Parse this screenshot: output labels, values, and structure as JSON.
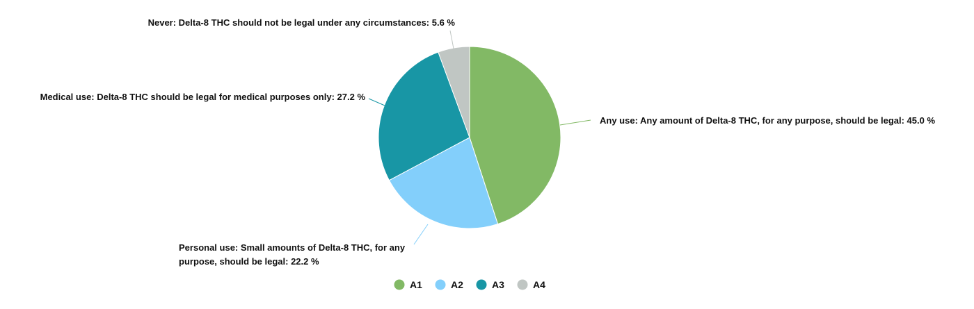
{
  "chart_data": {
    "type": "pie",
    "title": "",
    "slices": [
      {
        "key": "A1",
        "label_lines": [
          "Any use: Any amount of Delta-8 THC, for any purpose, should be legal: 45.0 %"
        ],
        "value": 45.0,
        "color": "#82b965"
      },
      {
        "key": "A2",
        "label_lines": [
          "Personal use: Small amounts of Delta-8 THC, for any",
          "purpose, should be legal: 22.2 %"
        ],
        "value": 22.2,
        "color": "#83cffb"
      },
      {
        "key": "A3",
        "label_lines": [
          "Medical use: Delta-8 THC should be legal for medical purposes only: 27.2 %"
        ],
        "value": 27.2,
        "color": "#1896a5"
      },
      {
        "key": "A4",
        "label_lines": [
          "Never: Delta-8 THC should not be legal under any circumstances: 5.6 %"
        ],
        "value": 5.6,
        "color": "#c0c6c3"
      }
    ],
    "legend": {
      "position": "bottom",
      "entries": [
        "A1",
        "A2",
        "A3",
        "A4"
      ]
    }
  }
}
